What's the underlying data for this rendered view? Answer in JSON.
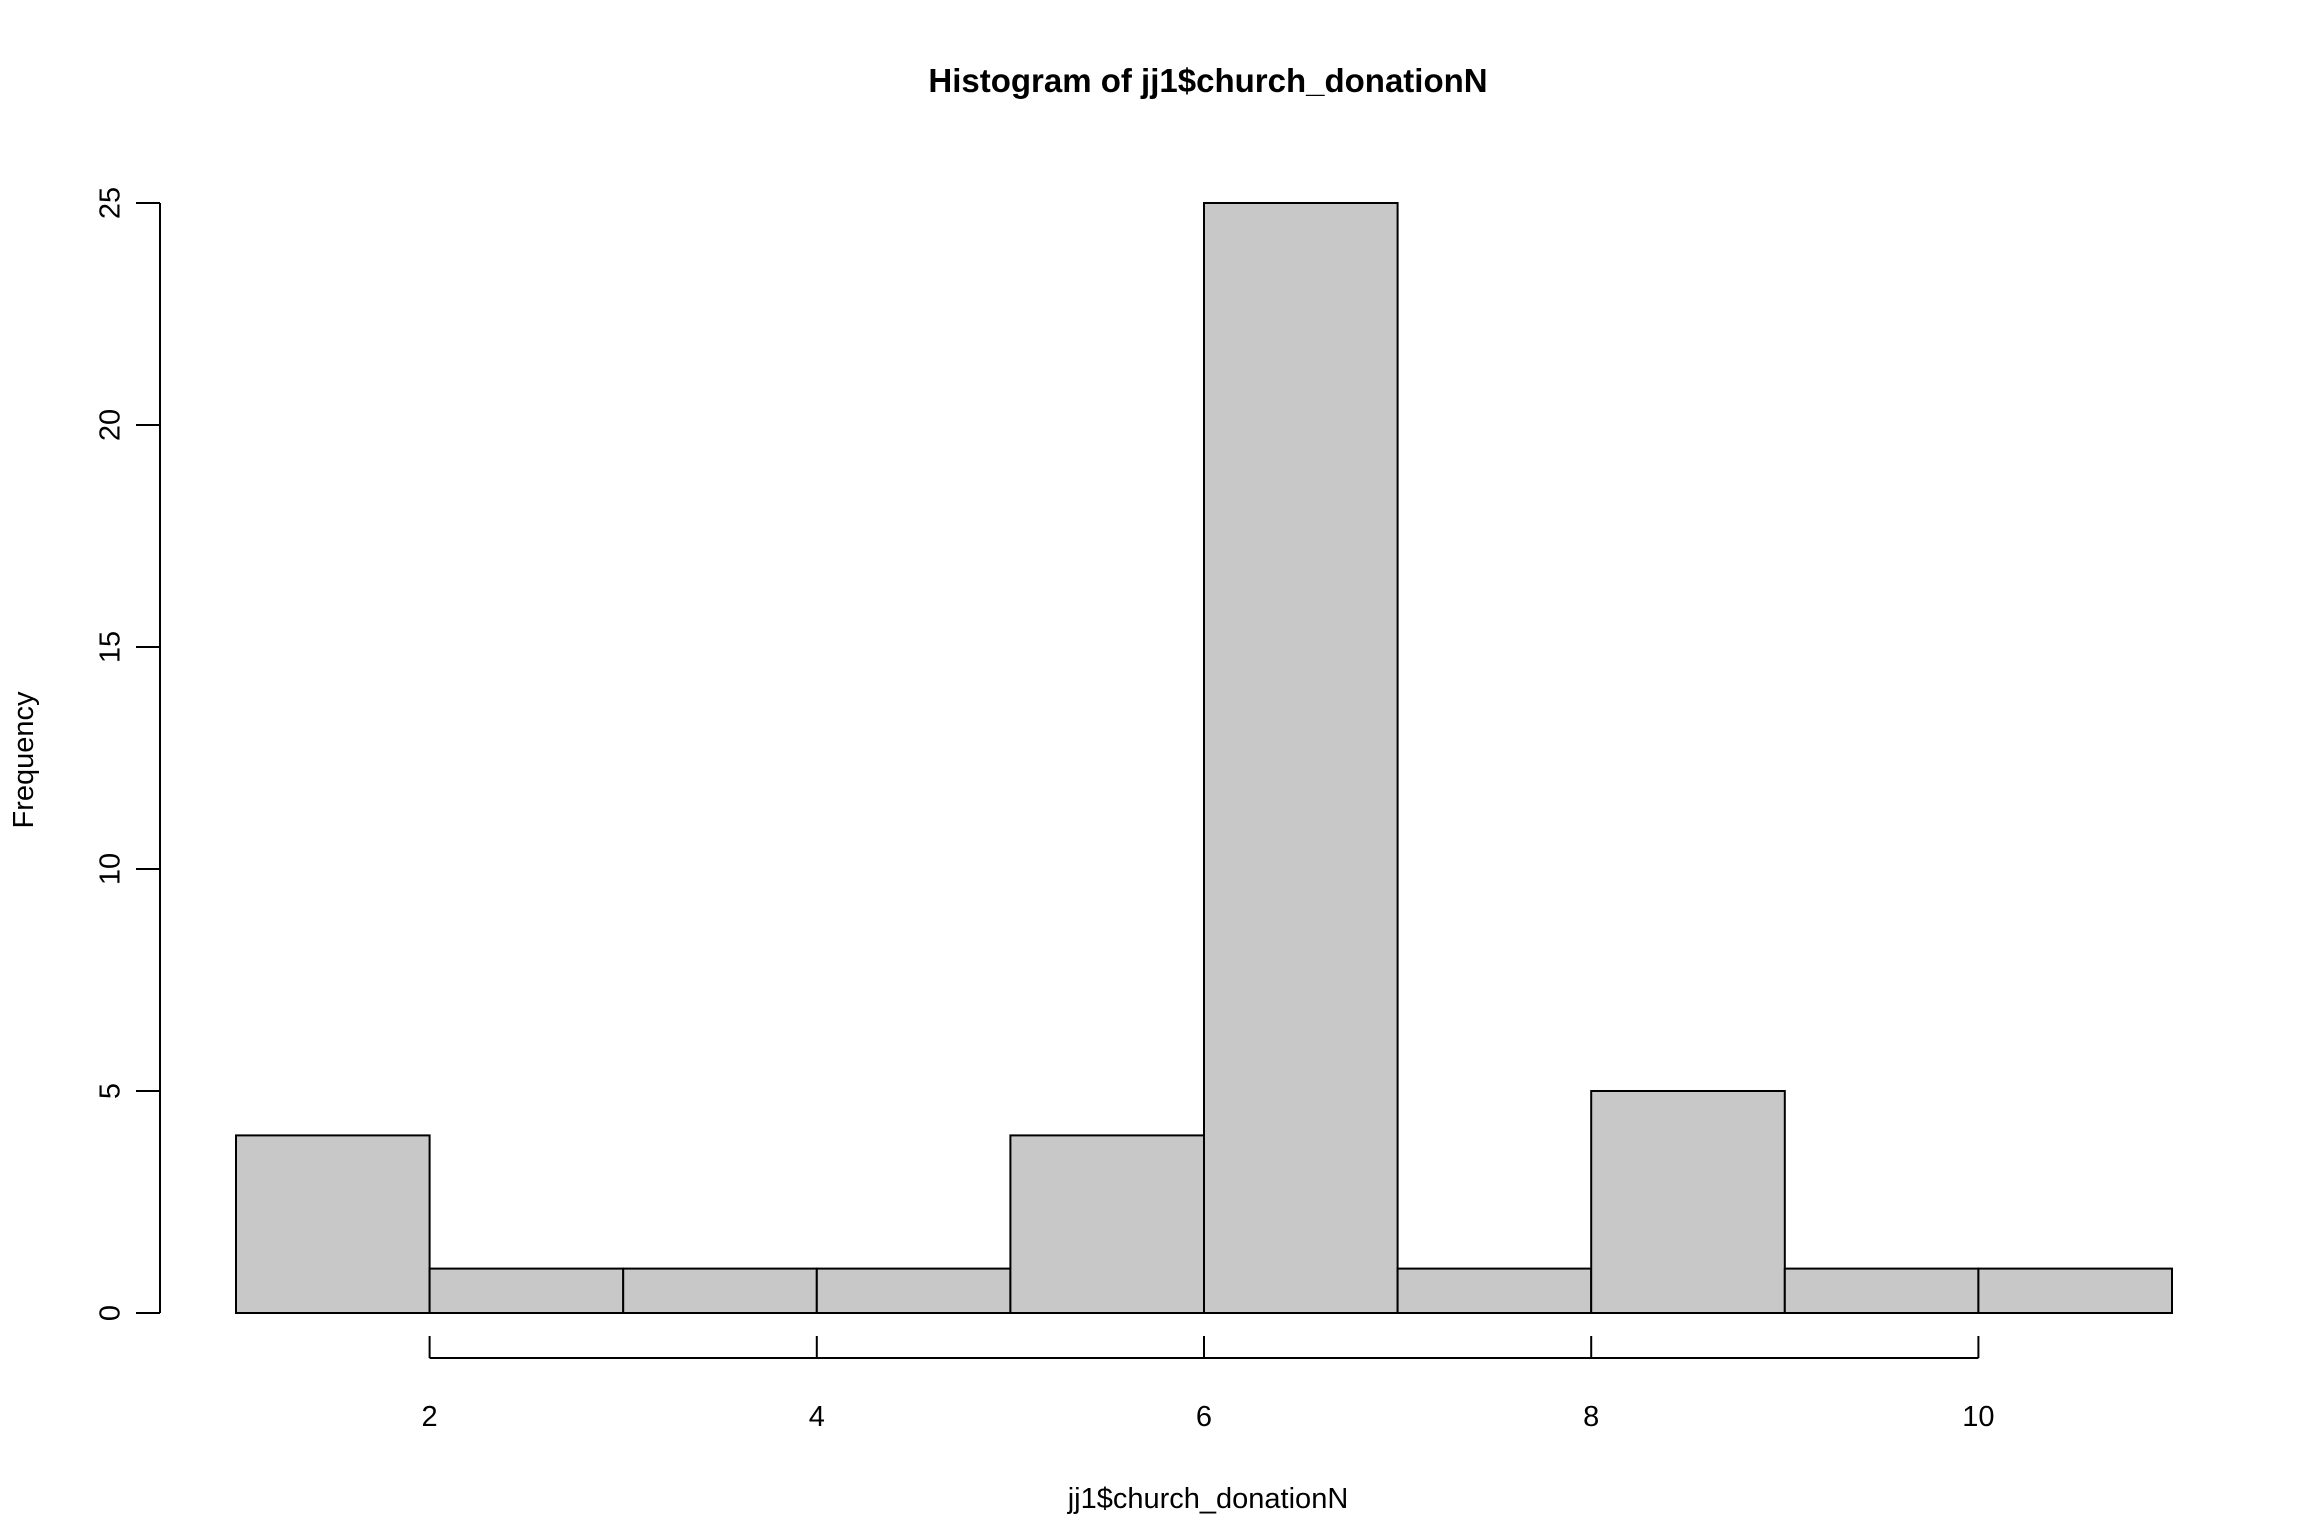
{
  "chart_data": {
    "type": "bar",
    "title": "Histogram of jj1$church_donationN",
    "xlabel": "jj1$church_donationN",
    "ylabel": "Frequency",
    "bins": [
      {
        "start": 1,
        "end": 2,
        "count": 4
      },
      {
        "start": 2,
        "end": 3,
        "count": 1
      },
      {
        "start": 3,
        "end": 4,
        "count": 1
      },
      {
        "start": 4,
        "end": 5,
        "count": 1
      },
      {
        "start": 5,
        "end": 6,
        "count": 4
      },
      {
        "start": 6,
        "end": 7,
        "count": 25
      },
      {
        "start": 7,
        "end": 8,
        "count": 1
      },
      {
        "start": 8,
        "end": 9,
        "count": 5
      },
      {
        "start": 9,
        "end": 10,
        "count": 1
      },
      {
        "start": 10,
        "end": 11,
        "count": 1
      }
    ],
    "xlim": [
      1,
      11
    ],
    "ylim": [
      0,
      25
    ],
    "xticks": [
      "2",
      "4",
      "6",
      "8",
      "10"
    ],
    "yticks": [
      "0",
      "5",
      "10",
      "15",
      "20",
      "25"
    ],
    "bar_fill": "#c8c8c8",
    "bar_stroke": "#000000",
    "grid": false
  }
}
